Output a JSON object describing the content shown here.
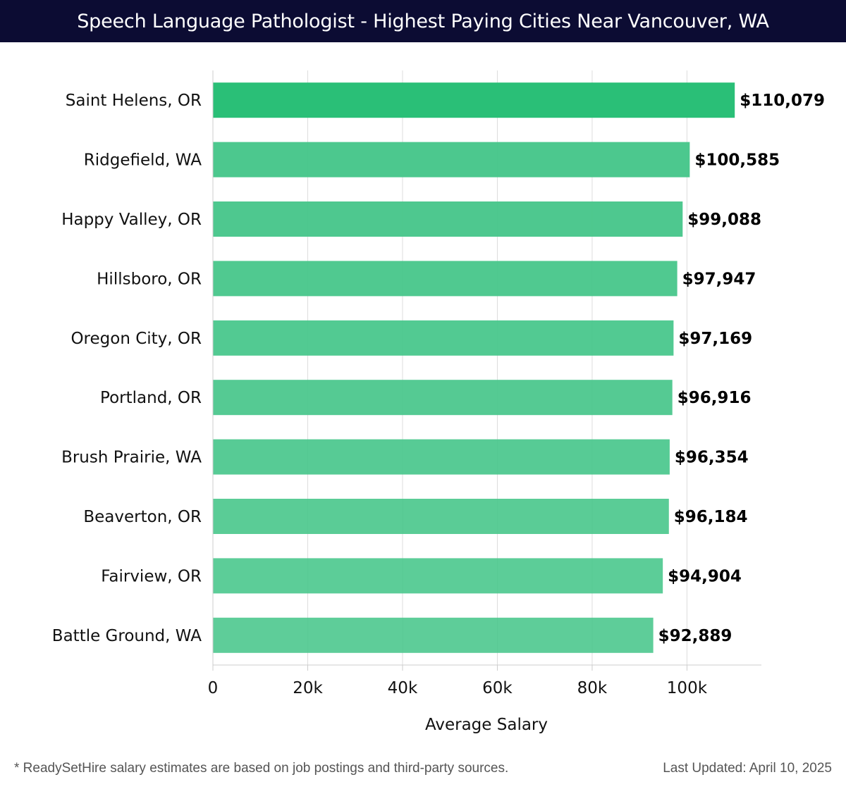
{
  "header": {
    "title": "Speech Language Pathologist - Highest Paying Cities Near Vancouver, WA"
  },
  "chart_data": {
    "type": "bar",
    "orientation": "horizontal",
    "title": "Speech Language Pathologist - Highest Paying Cities Near Vancouver, WA",
    "xlabel": "Average Salary",
    "ylabel": "",
    "categories": [
      "Saint Helens, OR",
      "Ridgefield, WA",
      "Happy Valley, OR",
      "Hillsboro, OR",
      "Oregon City, OR",
      "Portland, OR",
      "Brush Prairie, WA",
      "Beaverton, OR",
      "Fairview, OR",
      "Battle Ground, WA"
    ],
    "values": [
      110079,
      100585,
      99088,
      97947,
      97169,
      96916,
      96354,
      96184,
      94904,
      92889
    ],
    "value_labels": [
      "$110,079",
      "$100,585",
      "$99,088",
      "$97,947",
      "$97,169",
      "$96,916",
      "$96,354",
      "$96,184",
      "$94,904",
      "$92,889"
    ],
    "xlim": [
      0,
      115700
    ],
    "xticks": [
      0,
      20000,
      40000,
      60000,
      80000,
      100000
    ],
    "xtick_labels": [
      "0",
      "20k",
      "40k",
      "60k",
      "80k",
      "100k"
    ],
    "grid": true,
    "colors": {
      "top_bar": "#2abf77",
      "bar": "#46c68a",
      "grid": "#dddddd",
      "label": "#000000"
    }
  },
  "footer": {
    "note": "* ReadySetHire salary estimates are based on job postings and third-party sources.",
    "updated": "Last Updated: April 10, 2025"
  }
}
